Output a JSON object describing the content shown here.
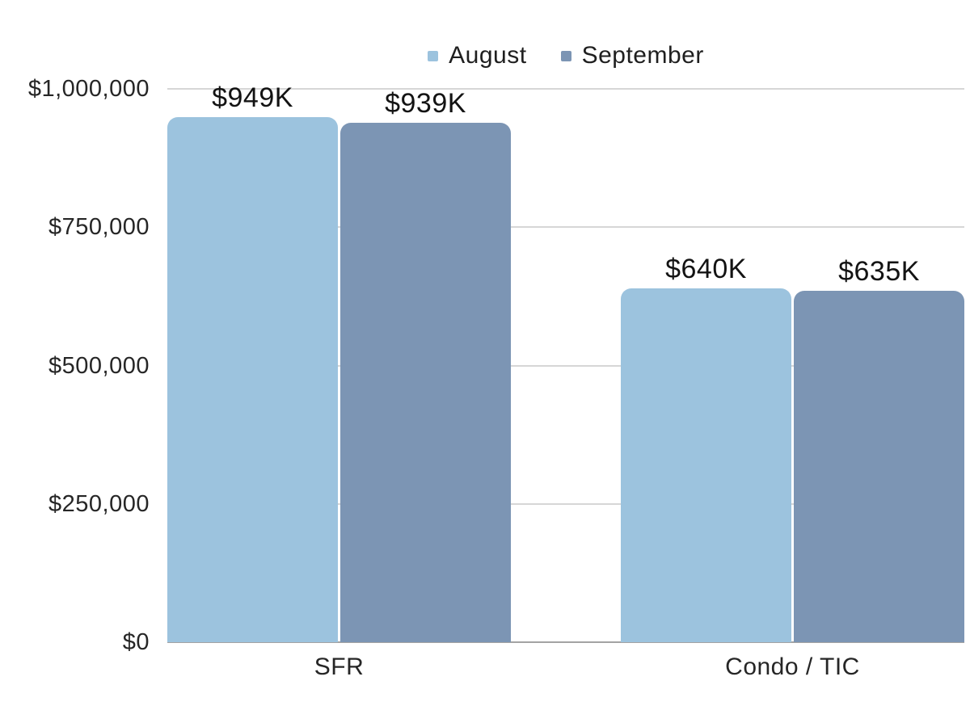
{
  "legend": {
    "position": "top",
    "items": [
      {
        "label": "August",
        "color": "#9CC3DE"
      },
      {
        "label": "September",
        "color": "#7C95B4"
      }
    ]
  },
  "chart_data": {
    "type": "bar",
    "title": "",
    "xlabel": "",
    "ylabel": "",
    "categories": [
      "SFR",
      "Condo / TIC"
    ],
    "series": [
      {
        "name": "August",
        "color": "#9CC3DE",
        "values": [
          949000,
          640000
        ],
        "data_labels": [
          "$949K",
          "$640K"
        ]
      },
      {
        "name": "September",
        "color": "#7C95B4",
        "values": [
          939000,
          635000
        ],
        "data_labels": [
          "$939K",
          "$635K"
        ]
      }
    ],
    "ylim": [
      0,
      1000000
    ],
    "yticks": [
      {
        "value": 0,
        "label": "$0"
      },
      {
        "value": 250000,
        "label": "$250,000"
      },
      {
        "value": 500000,
        "label": "$500,000"
      },
      {
        "value": 750000,
        "label": "$750,000"
      },
      {
        "value": 1000000,
        "label": "$1,000,000"
      }
    ],
    "grid": true,
    "legend_position": "top"
  },
  "colors": {
    "background": "#ffffff",
    "grid": "#d6d6d6",
    "axis": "#a3a3a3",
    "tick_text": "#262626",
    "data_label_text": "#131313"
  }
}
